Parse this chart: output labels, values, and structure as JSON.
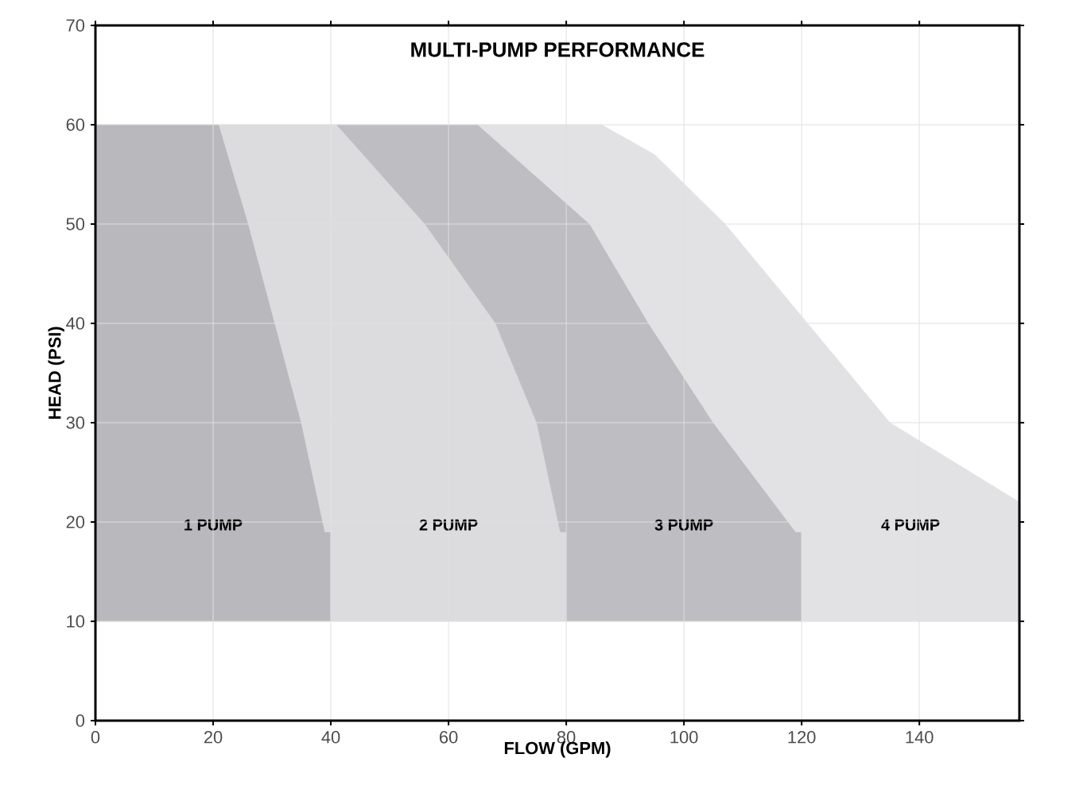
{
  "chart_data": {
    "type": "area",
    "title": "MULTI-PUMP PERFORMANCE",
    "xlabel": "FLOW (GPM)",
    "ylabel": "HEAD (PSI)",
    "xlim": [
      0,
      157
    ],
    "ylim": [
      0,
      70
    ],
    "xticks": [
      0,
      20,
      40,
      60,
      80,
      100,
      120,
      140
    ],
    "yticks": [
      0,
      10,
      20,
      30,
      40,
      50,
      60,
      70
    ],
    "grid": true,
    "series": [
      {
        "name": "1 PUMP",
        "color": "#b9b9bd",
        "x": [
          0,
          0,
          21,
          26,
          30.5,
          35,
          39,
          40,
          40
        ],
        "values": [
          10,
          60,
          60,
          50,
          40,
          30,
          19,
          19,
          10
        ]
      },
      {
        "name": "2 PUMP",
        "color": "#dcdcdf",
        "x": [
          40,
          40,
          39,
          35,
          30.5,
          26,
          21,
          41,
          56,
          68,
          75,
          79,
          80,
          80
        ],
        "values": [
          10,
          19,
          19,
          30,
          40,
          50,
          60,
          60,
          50,
          40,
          30,
          19,
          19,
          10
        ]
      },
      {
        "name": "3 PUMP",
        "color": "#bdbdc2",
        "x": [
          80,
          80,
          79,
          75,
          68,
          56,
          41,
          65,
          84,
          94,
          105,
          119,
          120,
          120
        ],
        "values": [
          10,
          19,
          19,
          30,
          40,
          50,
          60,
          60,
          50,
          40,
          30,
          19,
          19,
          10
        ]
      },
      {
        "name": "4 PUMP",
        "color": "#e2e2e4",
        "x": [
          120,
          120,
          119,
          105,
          94,
          84,
          65,
          86,
          95,
          107,
          121,
          135,
          157,
          157
        ],
        "values": [
          10,
          19,
          19,
          30,
          40,
          50,
          60,
          60,
          57,
          50,
          40,
          30,
          22,
          10
        ]
      }
    ]
  }
}
